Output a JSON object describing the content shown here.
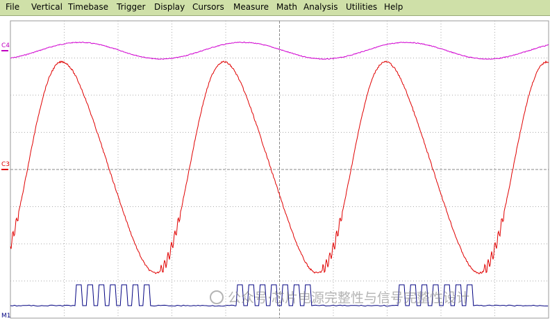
{
  "menu": [
    "File",
    "Vertical",
    "Timebase",
    "Trigger",
    "Display",
    "Cursors",
    "Measure",
    "Math",
    "Analysis",
    "Utilities",
    "Help"
  ],
  "channels": {
    "c4": "C4",
    "c3": "C3",
    "m1": "M1"
  },
  "watermark": "公众号·芯片电源完整性与信号完整性设计"
}
